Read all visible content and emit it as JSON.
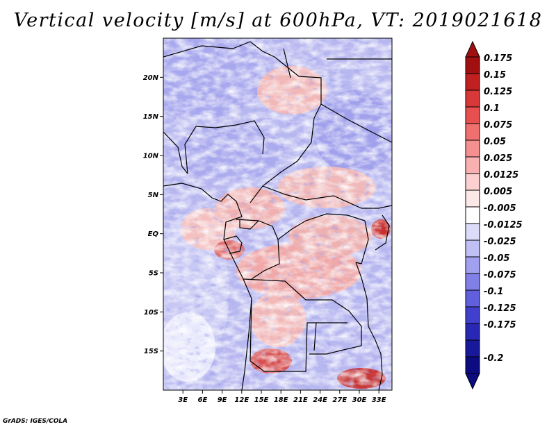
{
  "title": "Vertical velocity [m/s] at 600hPa, VT: 2019021618",
  "credit": "GrADS: IGES/COLA",
  "map": {
    "variable": "Vertical velocity",
    "units": "m/s",
    "level": "600hPa",
    "valid_time": "2019021618",
    "lon_range": [
      0,
      35
    ],
    "lat_range": [
      -20,
      25
    ],
    "lat_ticks": [
      {
        "value": 20,
        "label": "20N"
      },
      {
        "value": 15,
        "label": "15N"
      },
      {
        "value": 10,
        "label": "10N"
      },
      {
        "value": 5,
        "label": "5N"
      },
      {
        "value": 0,
        "label": "EQ"
      },
      {
        "value": -5,
        "label": "5S"
      },
      {
        "value": -10,
        "label": "10S"
      },
      {
        "value": -15,
        "label": "15S"
      }
    ],
    "lon_ticks": [
      {
        "value": 3,
        "label": "3E"
      },
      {
        "value": 6,
        "label": "6E"
      },
      {
        "value": 9,
        "label": "9E"
      },
      {
        "value": 12,
        "label": "12E"
      },
      {
        "value": 15,
        "label": "15E"
      },
      {
        "value": 18,
        "label": "18E"
      },
      {
        "value": 21,
        "label": "21E"
      },
      {
        "value": 24,
        "label": "24E"
      },
      {
        "value": 27,
        "label": "27E"
      },
      {
        "value": 30,
        "label": "30E"
      },
      {
        "value": 33,
        "label": "33E"
      }
    ]
  },
  "colorbar": {
    "labels": [
      "0.175",
      "0.15",
      "0.125",
      "0.1",
      "0.075",
      "0.05",
      "0.025",
      "0.0125",
      "0.005",
      "-0.005",
      "-0.0125",
      "-0.025",
      "-0.05",
      "-0.075",
      "-0.1",
      "-0.125",
      "-0.175",
      "-0.2"
    ],
    "colors": [
      "#a01010",
      "#c02020",
      "#d83838",
      "#e85050",
      "#f07070",
      "#f49090",
      "#f8b0b0",
      "#fcd0d0",
      "#fde8e8",
      "#ffffff",
      "#dcdcfa",
      "#c0c0f4",
      "#a0a0ee",
      "#8080e6",
      "#6060dc",
      "#4040cc",
      "#2828b4",
      "#18189a",
      "#0c0c80"
    ]
  }
}
